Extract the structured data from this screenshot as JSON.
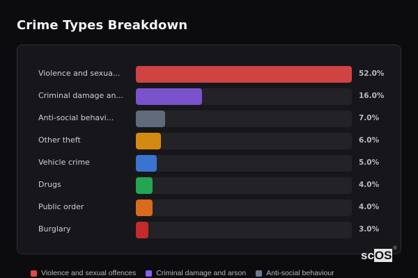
{
  "header": {
    "title": "Crime Types Breakdown"
  },
  "chart_data": {
    "type": "bar",
    "orientation": "horizontal",
    "title": "Crime Types Breakdown",
    "categories": [
      "Violence and sexual offences",
      "Criminal damage and arson",
      "Anti-social behaviour",
      "Other theft",
      "Vehicle crime",
      "Drugs",
      "Public order",
      "Burglary"
    ],
    "display_labels": [
      "Violence and sexua...",
      "Criminal damage an...",
      "Anti-social behavi...",
      "Other theft",
      "Vehicle crime",
      "Drugs",
      "Public order",
      "Burglary"
    ],
    "values": [
      52.0,
      16.0,
      7.0,
      6.0,
      5.0,
      4.0,
      4.0,
      3.0
    ],
    "value_labels": [
      "52.0%",
      "16.0%",
      "7.0%",
      "6.0%",
      "5.0%",
      "4.0%",
      "4.0%",
      "3.0%"
    ],
    "colors": [
      "#d04343",
      "#7a52cc",
      "#5f6b7a",
      "#d48a12",
      "#3b74d0",
      "#22a652",
      "#d86a1e",
      "#c42a2a"
    ],
    "xlabel": "",
    "ylabel": "",
    "xlim": [
      0,
      52
    ],
    "grid": false,
    "legend": {
      "position": "bottom",
      "entries": [
        {
          "label": "Violence and sexual offences",
          "color": "#e24848"
        },
        {
          "label": "Criminal damage and arson",
          "color": "#8a5cf0"
        },
        {
          "label": "Anti-social behaviour",
          "color": "#6b7a8f"
        }
      ]
    }
  },
  "logo": {
    "main": "sc",
    "boxed": "OS",
    "mark": "®"
  }
}
